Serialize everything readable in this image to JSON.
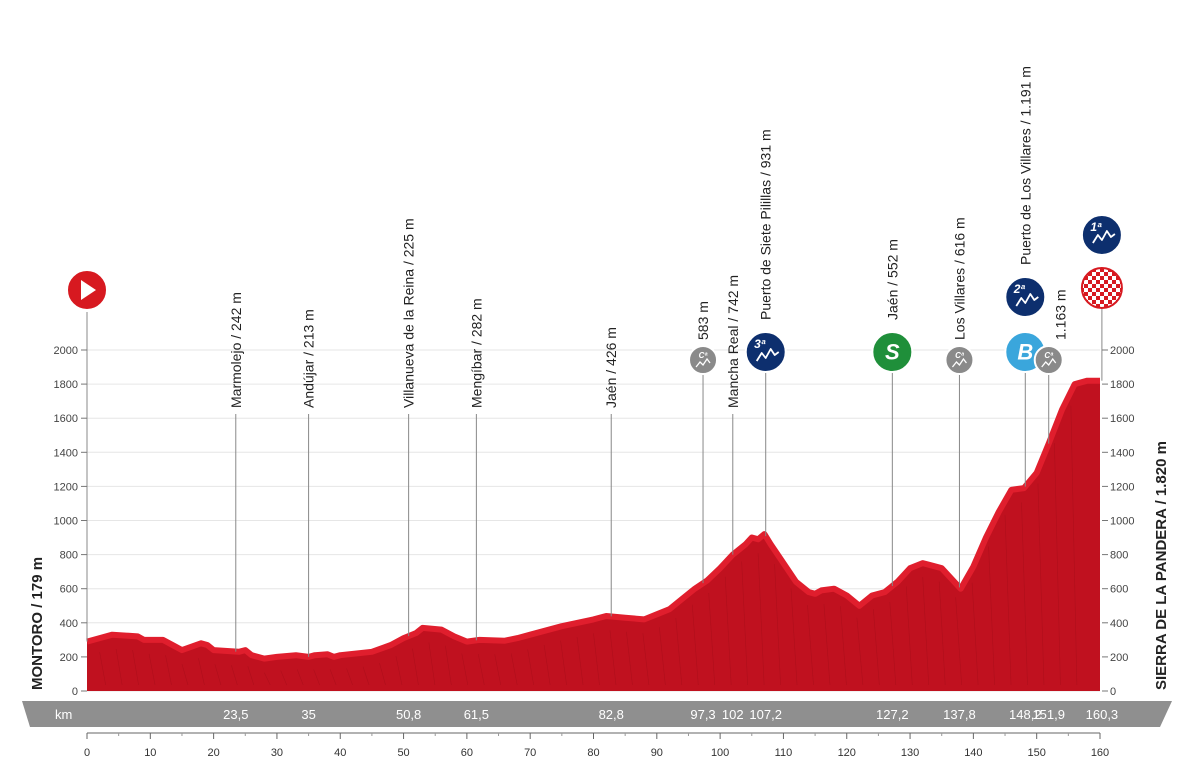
{
  "chart_data": {
    "type": "area",
    "xlabel": "km",
    "xlim": [
      0,
      160
    ],
    "ylim": [
      0,
      2000
    ],
    "y_ticks": [
      "0",
      "200",
      "400",
      "600",
      "800",
      "1000",
      "1200",
      "1400",
      "1600",
      "1800",
      "2000"
    ],
    "x_ticks": [
      "0",
      "10",
      "20",
      "30",
      "40",
      "50",
      "60",
      "70",
      "80",
      "90",
      "100",
      "110",
      "120",
      "130",
      "140",
      "150",
      "160"
    ],
    "start_label": "MONTORO / 179 m",
    "finish_label": "SIERRA DE LA PANDERA / 1.820 m",
    "profile": {
      "x": [
        0,
        2,
        4,
        8,
        9,
        12,
        14,
        15,
        18,
        19,
        20,
        24,
        25,
        26,
        27,
        28,
        30,
        33,
        35,
        36,
        38,
        39,
        40,
        45,
        48,
        50,
        52,
        53,
        56,
        58,
        60,
        62,
        66,
        68,
        70,
        75,
        80,
        82,
        85,
        88,
        90,
        92,
        94,
        96,
        98,
        100,
        102,
        104,
        105,
        106,
        107,
        108,
        110,
        112,
        114,
        115,
        116,
        118,
        120,
        122,
        124,
        126,
        128,
        130,
        132,
        133,
        135,
        137,
        138,
        140,
        142,
        144,
        146,
        148,
        150,
        152,
        154,
        156,
        158,
        160
      ],
      "y": [
        290,
        310,
        330,
        320,
        300,
        300,
        260,
        240,
        280,
        270,
        240,
        230,
        240,
        210,
        200,
        190,
        200,
        210,
        200,
        210,
        215,
        200,
        210,
        230,
        270,
        310,
        340,
        370,
        360,
        320,
        290,
        300,
        295,
        310,
        330,
        380,
        420,
        440,
        430,
        420,
        450,
        480,
        540,
        600,
        650,
        720,
        800,
        860,
        900,
        890,
        920,
        860,
        750,
        640,
        580,
        570,
        590,
        600,
        560,
        500,
        560,
        580,
        640,
        720,
        750,
        740,
        720,
        640,
        600,
        730,
        900,
        1050,
        1180,
        1190,
        1280,
        1460,
        1650,
        1800,
        1820,
        1820
      ]
    },
    "points": [
      {
        "km": 0,
        "label": "",
        "type": "start"
      },
      {
        "km": 23.5,
        "label": "Marmolejo / 242 m",
        "type": "town"
      },
      {
        "km": 35,
        "label": "Andújar / 213 m",
        "type": "town"
      },
      {
        "km": 50.8,
        "label": "Villanueva de la Reina / 225 m",
        "type": "town"
      },
      {
        "km": 61.5,
        "label": "Mengíbar / 282 m",
        "type": "town"
      },
      {
        "km": 82.8,
        "label": "Jaén / 426 m",
        "type": "town"
      },
      {
        "km": 97.3,
        "label": "583 m",
        "type": "cota"
      },
      {
        "km": 102,
        "label": "Mancha Real / 742 m",
        "type": "town"
      },
      {
        "km": 107.2,
        "label": "Puerto de Siete Pilillas / 931 m",
        "type": "cat3"
      },
      {
        "km": 127.2,
        "label": "Jaén / 552 m",
        "type": "sprint"
      },
      {
        "km": 137.8,
        "label": "Los Villares / 616 m",
        "type": "cota"
      },
      {
        "km": 148.2,
        "label": "Puerto de Los Villares / 1.191 m",
        "type": "cat2"
      },
      {
        "km": 151.9,
        "label": "1.163 m",
        "type": "cota"
      },
      {
        "km": 160.3,
        "label": "",
        "type": "finish"
      }
    ],
    "km_markers": [
      "23,5",
      "35",
      "50,8",
      "61,5",
      "82,8",
      "97,3",
      "102",
      "107,2",
      "127,2",
      "137,8",
      "148,2",
      "151,9",
      "160,3"
    ],
    "km_markers_x": [
      23.5,
      35,
      50.8,
      61.5,
      82.8,
      97.3,
      102,
      107.2,
      127.2,
      137.8,
      148.2,
      151.9,
      160.3
    ],
    "badges": {
      "start": "start-arrow-icon",
      "finish_cat": "1ª",
      "finish_flag": "checkered-flag-icon",
      "cat3": "3ª",
      "cat2": "2ª",
      "sprint": "S",
      "bonus": "B",
      "cota": "Cª"
    },
    "colors": {
      "profile_fill": "#c0111f",
      "profile_top": "#e01e2d",
      "badge_dark_blue": "#0d2f6e",
      "badge_grey": "#8a8a8a",
      "badge_green": "#1f8f3a",
      "badge_light_blue": "#3aa6dc",
      "start_red": "#d71920",
      "axis_band": "#8f8f8f"
    }
  }
}
